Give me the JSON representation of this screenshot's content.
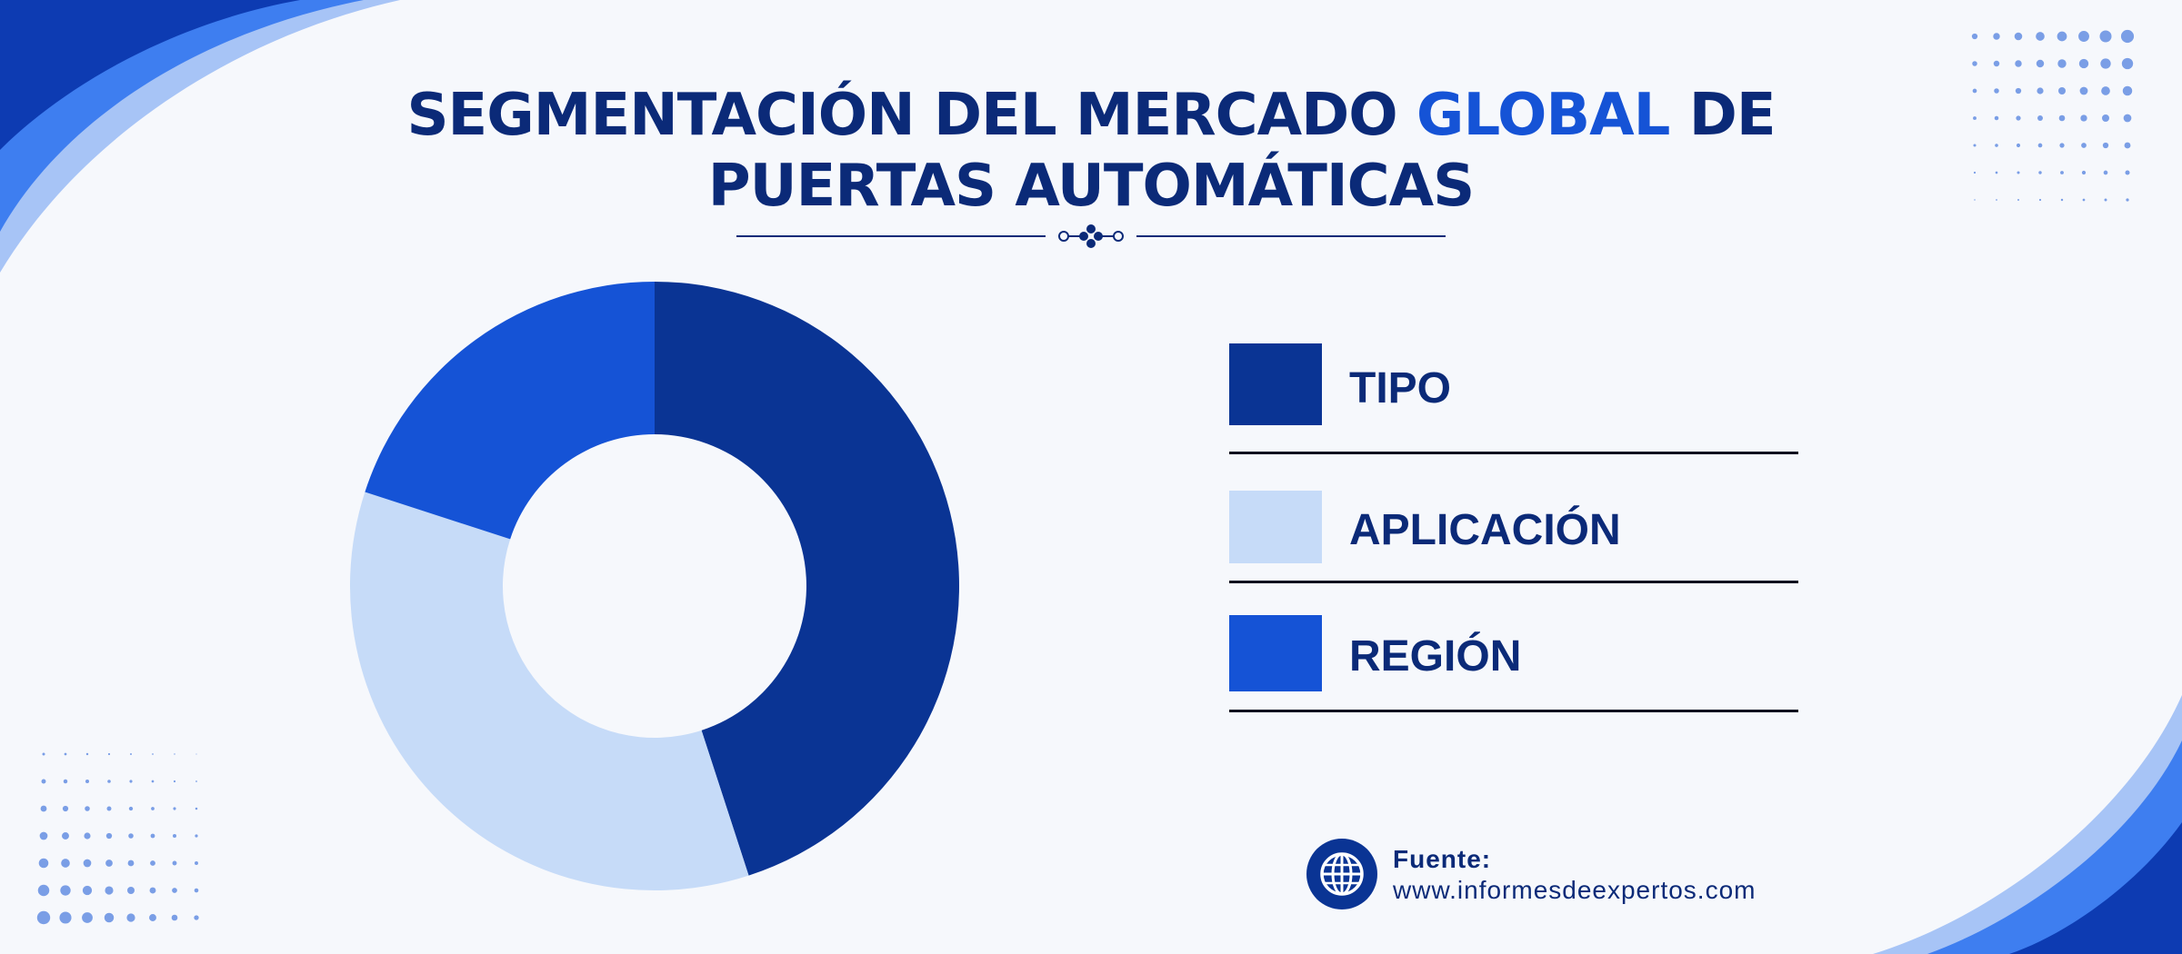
{
  "title": {
    "part1": "SEGMENTACIÓN DEL MERCADO ",
    "highlight": "GLOBAL",
    "part2": " DE",
    "line2": "PUERTAS AUTOMÁTICAS"
  },
  "colors": {
    "dark_blue": "#0a3494",
    "light_blue": "#c6dbf8",
    "mid_blue": "#1553d6",
    "title_color": "#0b2a78",
    "highlight_color": "#1553d6"
  },
  "chart_data": {
    "type": "pie",
    "title": "SEGMENTACIÓN DEL MERCADO GLOBAL DE PUERTAS AUTOMÁTICAS",
    "labels": [
      "TIPO",
      "APLICACIÓN",
      "REGIÓN"
    ],
    "values": [
      45,
      35,
      20
    ],
    "colors": [
      "#0a3494",
      "#c6dbf8",
      "#1553d6"
    ],
    "legend_position": "right"
  },
  "legend": [
    {
      "label": "TIPO"
    },
    {
      "label": "APLICACIÓN"
    },
    {
      "label": "REGIÓN"
    }
  ],
  "source": {
    "label": "Fuente:",
    "url": "www.informesdeexpertos.com",
    "icon": "globe-icon"
  }
}
